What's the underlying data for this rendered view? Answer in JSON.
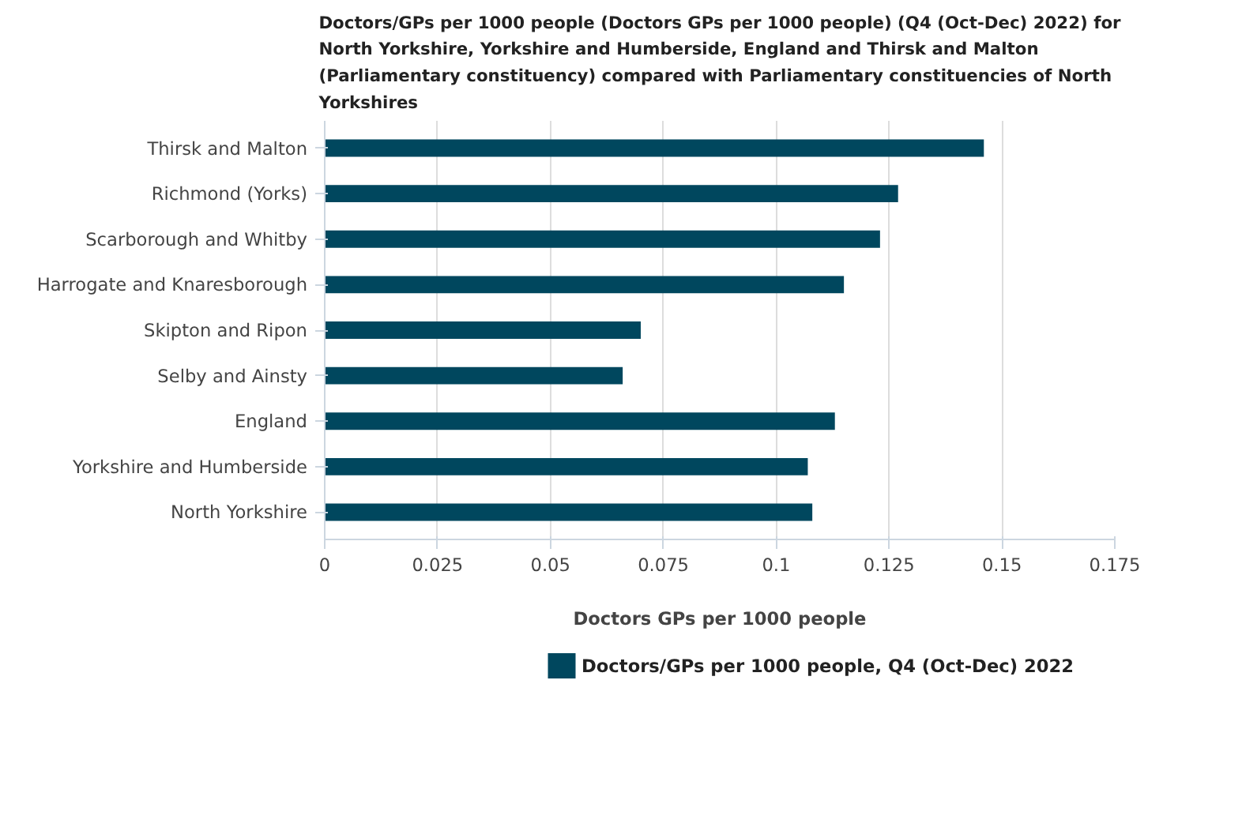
{
  "chart_data": {
    "type": "bar",
    "orientation": "horizontal",
    "title": "Doctors/GPs per 1000 people (Doctors GPs per 1000 people) (Q4 (Oct-Dec) 2022) for North Yorkshire, Yorkshire and Humberside, England and Thirsk and Malton (Parliamentary constituency) compared with Parliamentary constituencies of North Yorkshires",
    "categories": [
      "Thirsk and Malton",
      "Richmond (Yorks)",
      "Scarborough and Whitby",
      "Harrogate and Knaresborough",
      "Skipton and Ripon",
      "Selby and Ainsty",
      "England",
      "Yorkshire and Humberside",
      "North Yorkshire"
    ],
    "series": [
      {
        "name": "Doctors/GPs per 1000 people, Q4 (Oct-Dec) 2022",
        "color": "#00475e",
        "values": [
          0.146,
          0.127,
          0.123,
          0.115,
          0.07,
          0.066,
          0.113,
          0.107,
          0.108
        ]
      }
    ],
    "xlabel": "Doctors GPs per 1000 people",
    "xlim": [
      0,
      0.175
    ],
    "xticks": [
      0,
      0.025,
      0.05,
      0.075,
      0.1,
      0.125,
      0.15,
      0.175
    ],
    "grid": "x",
    "legend": "bottom"
  }
}
